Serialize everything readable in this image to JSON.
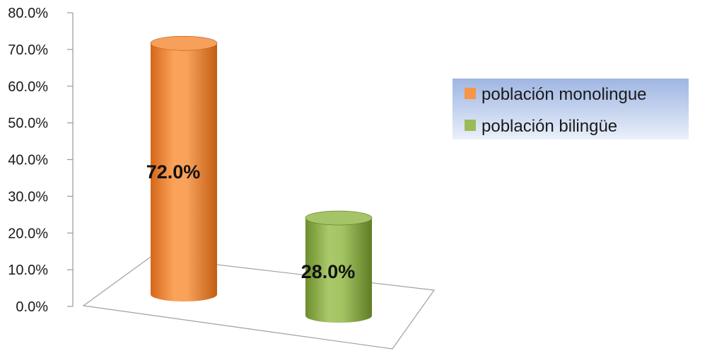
{
  "chart_data": {
    "type": "bar",
    "style": "3d-cylinder",
    "categories": [
      "población monolingue",
      "población bilingüe"
    ],
    "values": [
      72.0,
      28.0
    ],
    "value_labels": [
      "72.0%",
      "28.0%"
    ],
    "colors": [
      "#F79646",
      "#9BBB59"
    ],
    "ylim": [
      0,
      80
    ],
    "y_ticks": [
      "0.0%",
      "10.0%",
      "20.0%",
      "30.0%",
      "40.0%",
      "50.0%",
      "60.0%",
      "70.0%",
      "80.0%"
    ],
    "grid": false,
    "legend": {
      "position": "right",
      "entries": [
        "población monolingue",
        "población bilingüe"
      ]
    }
  }
}
